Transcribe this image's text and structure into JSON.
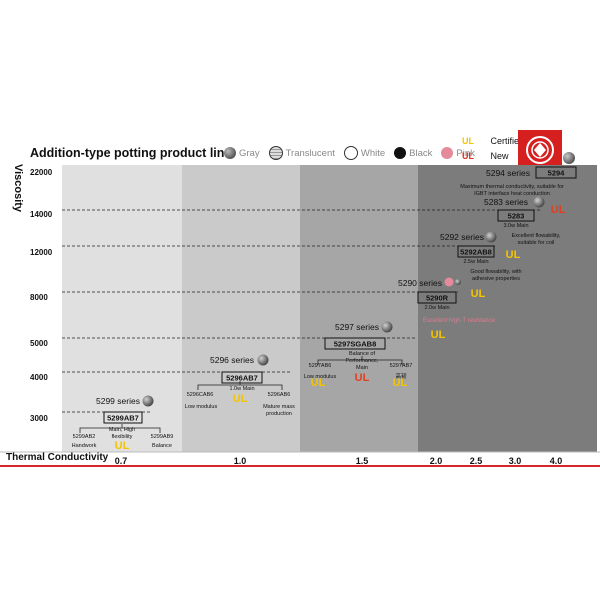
{
  "header": {
    "title": "Addition-type potting product line",
    "legend": [
      {
        "label": "Gray",
        "color": "#7a7a7a"
      },
      {
        "label": "Translucent",
        "color": "#b8b8b8"
      },
      {
        "label": "White",
        "color": "#ffffff"
      },
      {
        "label": "Black",
        "color": "#111111"
      },
      {
        "label": "Pink",
        "color": "#e58a9a"
      }
    ],
    "ul_legend": [
      {
        "mark": "UL",
        "label": "Certified",
        "color": "#f4c400"
      },
      {
        "mark": "UL",
        "label": "New",
        "color": "#e03020"
      }
    ]
  },
  "colors": {
    "accent_red": "#d61f1f",
    "ul_yellow": "#f4c400",
    "ul_red": "#e04020",
    "pink_note": "#e07a90"
  },
  "chart_data": {
    "type": "scatter",
    "xlabel": "Thermal Conductivity",
    "ylabel": "Viscosity",
    "x_ticks": [
      "0.7",
      "1.0",
      "1.5",
      "2.0",
      "2.5",
      "3.0",
      "4.0"
    ],
    "y_ticks": [
      "22000",
      "14000",
      "12000",
      "8000",
      "5000",
      "4000",
      "3000"
    ],
    "bands": [
      {
        "from": "0.7",
        "to": "1.0",
        "color": "#e0e0e0"
      },
      {
        "from": "1.0",
        "to": "1.5",
        "color": "#cacaca"
      },
      {
        "from": "1.5",
        "to": "2.0",
        "color": "#a6a6a6"
      },
      {
        "from": "2.0",
        "to": "4.0",
        "color": "#7c7c7c"
      }
    ],
    "series": [
      {
        "name": "5299 series",
        "x": "0.7",
        "y": "3000",
        "main": "5299AB7",
        "main_desc": "Main, High flexibility",
        "main_ul": "yellow",
        "variants": [
          {
            "model": "5299AB2",
            "desc": "Handwork"
          },
          {
            "model": "5299AB9",
            "desc": "Balance"
          }
        ]
      },
      {
        "name": "5296 series",
        "x": "1.0",
        "y": "4000",
        "main": "5296AB7",
        "main_desc": "1.0w Main",
        "main_ul": "yellow",
        "variants": [
          {
            "model": "5296CAB6",
            "desc": "Low modulus"
          },
          {
            "model": "5296AB6",
            "desc": "Mature mass production"
          }
        ]
      },
      {
        "name": "5297 series",
        "x": "1.5",
        "y": "5000",
        "main": "5297SGAB8",
        "main_desc": "Balance of Performance, Main",
        "main_ul": "red",
        "variants": [
          {
            "model": "5297AB6",
            "desc": "Low modulus",
            "ul": "yellow"
          },
          {
            "model": "5297AB7",
            "desc": "高韧",
            "ul": "yellow"
          }
        ]
      },
      {
        "name": "5290 series",
        "x": "2.0",
        "y": "8000",
        "main": "5290R",
        "main_desc": "2.0w Main",
        "main_ul": "yellow",
        "note": "Excellent high-T resistance"
      },
      {
        "name": "5292 series",
        "x": "2.5",
        "y": "12000",
        "main": "5292AB8",
        "main_desc": "2.5w Main",
        "main_ul": "yellow",
        "note": "Good flowability, with adhesive properties"
      },
      {
        "name": "5283 series",
        "x": "3.0",
        "y": "14000",
        "main": "5283",
        "main_desc": "3.0w Main",
        "main_ul": "red",
        "note": "Excellent flowability, suitable for coil"
      },
      {
        "name": "5294 series",
        "x": "4.0",
        "y": "22000",
        "main": "5294",
        "note": "Maximum thermal conductivity, suitable for IGBT interface heat conduction"
      }
    ]
  }
}
